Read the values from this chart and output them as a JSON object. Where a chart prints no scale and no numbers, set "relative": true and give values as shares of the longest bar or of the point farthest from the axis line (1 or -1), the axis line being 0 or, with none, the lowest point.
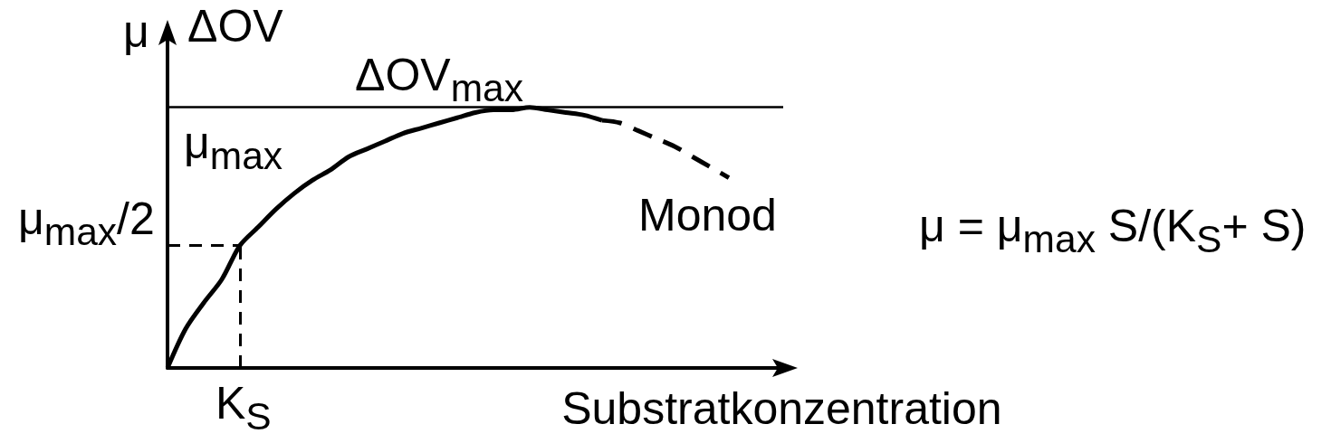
{
  "chart_data": {
    "type": "line",
    "relative": true,
    "xlabel": "Substratkonzentration",
    "ylabel": "μ",
    "categories": [
      null,
      null,
      null,
      null,
      null,
      null,
      null,
      null,
      null,
      null,
      null,
      null,
      null,
      null,
      null,
      null,
      null,
      null,
      null,
      null,
      null,
      null,
      null,
      null,
      null,
      null,
      null,
      null,
      null,
      null,
      null,
      null,
      null,
      null,
      null
    ],
    "series": [
      {
        "color": "#000000",
        "line_style": "solid",
        "values": [
          0,
          0.15,
          0.25,
          0.34,
          0.47,
          0.54,
          0.61,
          0.67,
          0.72,
          0.76,
          0.81,
          0.84,
          0.87,
          0.9,
          0.92,
          0.94,
          0.96,
          0.98,
          0.99,
          0.99,
          1,
          0.99,
          0.98,
          0.97,
          0.95,
          null,
          null,
          null,
          null,
          null,
          null,
          null,
          null,
          null,
          null
        ]
      },
      {
        "name": "Monod",
        "color": "#000000",
        "line_style": "dashed",
        "values": [
          null,
          null,
          null,
          null,
          null,
          null,
          null,
          null,
          null,
          null,
          null,
          null,
          null,
          null,
          null,
          null,
          null,
          null,
          null,
          null,
          null,
          null,
          null,
          null,
          0.95,
          0.94,
          0.91,
          0.88,
          0.85,
          0.81,
          0.77,
          0.73,
          null,
          null,
          null
        ]
      }
    ],
    "ref_lines": [
      {
        "axis": "y",
        "value": 1,
        "label": "ΔOV$_{max}$",
        "line_style": "solid"
      },
      {
        "axis": "y",
        "value": 0.47,
        "label": "μ$_{max}$/2",
        "line_style": "dashed"
      },
      {
        "axis": "x",
        "label": "K$_{S}$",
        "line_style": "dashed"
      }
    ],
    "annotations": [
      "ΔOV",
      {
        "text": "μ$_{max}$",
        "y": 1
      },
      "μ = μ$_{max}$ S/(K$_{S}$+ S)"
    ],
    "marker": "none",
    "grid": false,
    "legend": false
  }
}
